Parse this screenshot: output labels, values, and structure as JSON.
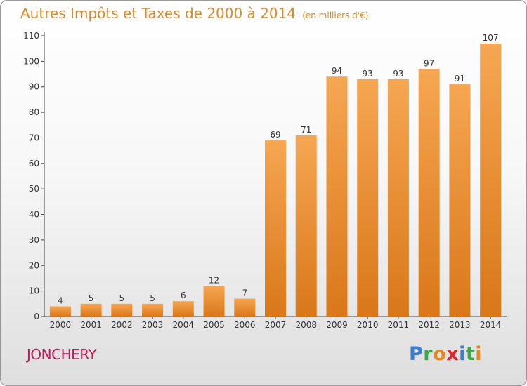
{
  "title": "Autres Impôts et Taxes de 2000 à 2014",
  "unit_label": "(en milliers d'€)",
  "commune": "JONCHERY",
  "logo": {
    "letters": [
      "P",
      "r",
      "o",
      "x",
      "i",
      "t",
      "i"
    ],
    "colors": [
      "#3b7fd4",
      "#3ba84a",
      "#e8881c",
      "#e0262a",
      "#3b7fd4",
      "#3ba84a",
      "#e8881c"
    ]
  },
  "colors": {
    "bar_top": "#f6a652",
    "bar_bottom": "#d97719",
    "title": "#d98a2b",
    "commune": "#c2185b"
  },
  "chart_data": {
    "type": "bar",
    "title": "Autres Impôts et Taxes de 2000 à 2014",
    "xlabel": "",
    "ylabel": "",
    "categories": [
      "2000",
      "2001",
      "2002",
      "2003",
      "2004",
      "2005",
      "2006",
      "2007",
      "2008",
      "2009",
      "2010",
      "2011",
      "2012",
      "2013",
      "2014"
    ],
    "values": [
      4,
      5,
      5,
      5,
      6,
      12,
      7,
      69,
      71,
      94,
      93,
      93,
      97,
      91,
      107
    ],
    "ylim": [
      0,
      110
    ],
    "yticks": [
      0,
      10,
      20,
      30,
      40,
      50,
      60,
      70,
      80,
      90,
      100,
      110
    ],
    "grid": false,
    "legend": "none"
  }
}
